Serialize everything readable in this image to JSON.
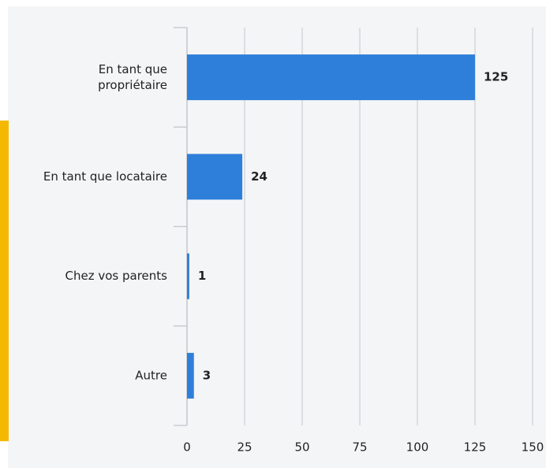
{
  "chart_data": {
    "type": "bar",
    "orientation": "horizontal",
    "categories": [
      "En tant que\npropriétaire",
      "En tant que locataire",
      "Chez vos parents",
      "Autre"
    ],
    "values": [
      125,
      24,
      1,
      3
    ],
    "color": "#2e7fd9",
    "xlim": [
      0,
      150
    ],
    "xticks": [
      0,
      25,
      50,
      75,
      100,
      125,
      150
    ],
    "grid": true
  }
}
